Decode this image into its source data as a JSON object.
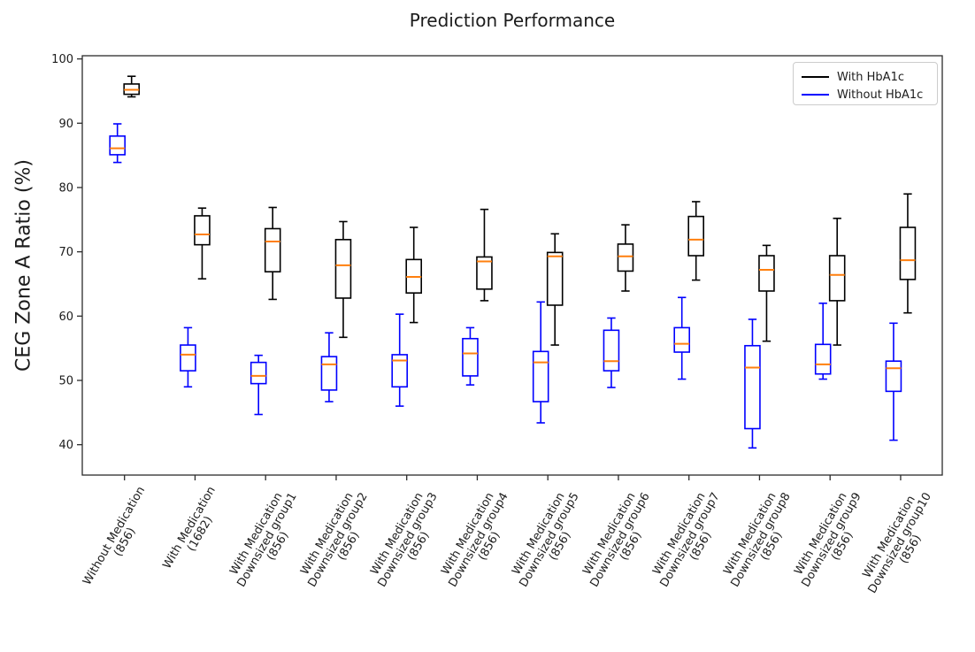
{
  "chart_data": {
    "type": "boxplot",
    "title": "Prediction Performance",
    "ylabel": "CEG Zone A Ratio (%)",
    "xlabel": "",
    "ylim": [
      35.2,
      100.5
    ],
    "yticks": [
      40,
      50,
      60,
      70,
      80,
      90,
      100
    ],
    "grid": false,
    "legend_position": "upper right",
    "median_color": "#ff7f0e",
    "legend": [
      {
        "name": "With HbA1c",
        "color": "#000000"
      },
      {
        "name": "Without HbA1c",
        "color": "#0000ff"
      }
    ],
    "categories": [
      [
        "Without Medication",
        "(856)"
      ],
      [
        "With Medication",
        "(1682)"
      ],
      [
        "With Medication",
        "Downsized group1",
        "(856)"
      ],
      [
        "With Medication",
        "Downsized group2",
        "(856)"
      ],
      [
        "With Medication",
        "Downsized group3",
        "(856)"
      ],
      [
        "With Medication",
        "Downsized group4",
        "(856)"
      ],
      [
        "With Medication",
        "Downsized group5",
        "(856)"
      ],
      [
        "With Medication",
        "Downsized group6",
        "(856)"
      ],
      [
        "With Medication",
        "Downsized group7",
        "(856)"
      ],
      [
        "With Medication",
        "Downsized group8",
        "(856)"
      ],
      [
        "With Medication",
        "Downsized group9",
        "(856)"
      ],
      [
        "With Medication",
        "Downsized group10",
        "(856)"
      ]
    ],
    "series": [
      {
        "name": "With HbA1c",
        "color": "#000000",
        "side": "right",
        "boxes": [
          {
            "whislo": 94.1,
            "q1": 94.5,
            "med": 95.2,
            "q3": 96.1,
            "whishi": 97.3
          },
          {
            "whislo": 65.8,
            "q1": 71.1,
            "med": 72.7,
            "q3": 75.6,
            "whishi": 76.8
          },
          {
            "whislo": 62.6,
            "q1": 66.9,
            "med": 71.6,
            "q3": 73.6,
            "whishi": 76.9
          },
          {
            "whislo": 56.7,
            "q1": 62.8,
            "med": 67.9,
            "q3": 71.9,
            "whishi": 74.7
          },
          {
            "whislo": 59.0,
            "q1": 63.6,
            "med": 66.1,
            "q3": 68.8,
            "whishi": 73.8
          },
          {
            "whislo": 62.4,
            "q1": 64.2,
            "med": 68.5,
            "q3": 69.2,
            "whishi": 76.6
          },
          {
            "whislo": 55.5,
            "q1": 61.7,
            "med": 69.3,
            "q3": 69.9,
            "whishi": 72.8
          },
          {
            "whislo": 63.9,
            "q1": 67.0,
            "med": 69.3,
            "q3": 71.2,
            "whishi": 74.2
          },
          {
            "whislo": 65.6,
            "q1": 69.4,
            "med": 71.9,
            "q3": 75.5,
            "whishi": 77.8
          },
          {
            "whislo": 56.1,
            "q1": 63.9,
            "med": 67.2,
            "q3": 69.4,
            "whishi": 71.0
          },
          {
            "whislo": 55.5,
            "q1": 62.4,
            "med": 66.4,
            "q3": 69.4,
            "whishi": 75.2
          },
          {
            "whislo": 60.5,
            "q1": 65.7,
            "med": 68.7,
            "q3": 73.8,
            "whishi": 79.0
          }
        ]
      },
      {
        "name": "Without HbA1c",
        "color": "#0000ff",
        "side": "left",
        "boxes": [
          {
            "whislo": 83.9,
            "q1": 85.1,
            "med": 86.1,
            "q3": 88.0,
            "whishi": 89.9
          },
          {
            "whislo": 49.0,
            "q1": 51.5,
            "med": 54.0,
            "q3": 55.5,
            "whishi": 58.2
          },
          {
            "whislo": 44.7,
            "q1": 49.5,
            "med": 50.7,
            "q3": 52.8,
            "whishi": 53.9
          },
          {
            "whislo": 46.7,
            "q1": 48.5,
            "med": 52.5,
            "q3": 53.7,
            "whishi": 57.4
          },
          {
            "whislo": 46.0,
            "q1": 49.0,
            "med": 53.1,
            "q3": 54.0,
            "whishi": 60.3
          },
          {
            "whislo": 49.3,
            "q1": 50.7,
            "med": 54.2,
            "q3": 56.5,
            "whishi": 58.2
          },
          {
            "whislo": 43.4,
            "q1": 46.7,
            "med": 52.8,
            "q3": 54.5,
            "whishi": 62.2
          },
          {
            "whislo": 48.9,
            "q1": 51.5,
            "med": 53.0,
            "q3": 57.8,
            "whishi": 59.7
          },
          {
            "whislo": 50.2,
            "q1": 54.4,
            "med": 55.7,
            "q3": 58.2,
            "whishi": 62.9
          },
          {
            "whislo": 39.5,
            "q1": 42.5,
            "med": 52.0,
            "q3": 55.4,
            "whishi": 59.5
          },
          {
            "whislo": 50.2,
            "q1": 51.0,
            "med": 52.5,
            "q3": 55.6,
            "whishi": 62.0
          },
          {
            "whislo": 40.7,
            "q1": 48.3,
            "med": 51.9,
            "q3": 53.0,
            "whishi": 58.9
          }
        ]
      }
    ]
  }
}
